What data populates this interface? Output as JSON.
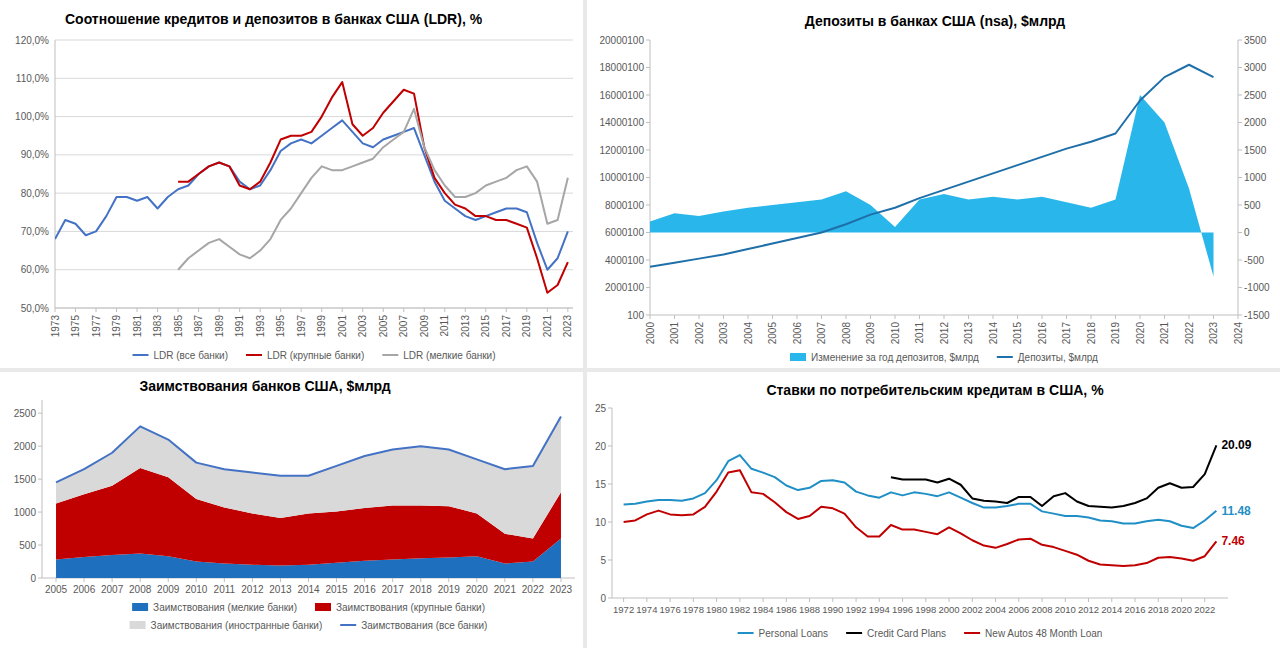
{
  "chart_data": [
    {
      "type": "line",
      "title": "Соотношение кредитов и депозитов в банках США (LDR), %",
      "x": [
        1973,
        1974,
        1975,
        1976,
        1977,
        1978,
        1979,
        1980,
        1981,
        1982,
        1983,
        1984,
        1985,
        1986,
        1987,
        1988,
        1989,
        1990,
        1991,
        1992,
        1993,
        1994,
        1995,
        1996,
        1997,
        1998,
        1999,
        2000,
        2001,
        2002,
        2003,
        2004,
        2005,
        2006,
        2007,
        2008,
        2009,
        2010,
        2011,
        2012,
        2013,
        2014,
        2015,
        2016,
        2017,
        2018,
        2019,
        2020,
        2021,
        2022,
        2023
      ],
      "series": [
        {
          "name": "LDR (все банки)",
          "color": "#4472c4",
          "values": [
            68,
            73,
            72,
            69,
            70,
            74,
            79,
            79,
            78,
            79,
            76,
            79,
            81,
            82,
            85,
            87,
            88,
            87,
            83,
            81,
            82,
            86,
            91,
            93,
            94,
            93,
            95,
            97,
            99,
            96,
            93,
            92,
            94,
            95,
            96,
            97,
            90,
            83,
            78,
            76,
            74,
            73,
            74,
            75,
            76,
            76,
            75,
            67,
            60,
            63,
            70
          ]
        },
        {
          "name": "LDR (крупные банки)",
          "color": "#c00000",
          "values": [
            null,
            null,
            null,
            null,
            null,
            null,
            null,
            null,
            null,
            null,
            null,
            null,
            83,
            83,
            85,
            87,
            88,
            87,
            82,
            81,
            83,
            88,
            94,
            95,
            95,
            96,
            100,
            105,
            109,
            98,
            95,
            97,
            101,
            104,
            107,
            106,
            92,
            84,
            80,
            77,
            76,
            74,
            74,
            73,
            73,
            72,
            71,
            63,
            54,
            56,
            62
          ]
        },
        {
          "name": "LDR (мелкие банки)",
          "color": "#a6a6a6",
          "values": [
            null,
            null,
            null,
            null,
            null,
            null,
            null,
            null,
            null,
            null,
            null,
            null,
            60,
            63,
            65,
            67,
            68,
            66,
            64,
            63,
            65,
            68,
            73,
            76,
            80,
            84,
            87,
            86,
            86,
            87,
            88,
            89,
            92,
            94,
            96,
            102,
            92,
            86,
            82,
            79,
            79,
            80,
            82,
            83,
            84,
            86,
            87,
            83,
            72,
            73,
            84
          ]
        }
      ],
      "xlim": [
        1973,
        2023.5
      ],
      "xticks": [
        1973,
        1975,
        1977,
        1979,
        1981,
        1983,
        1985,
        1987,
        1989,
        1991,
        1993,
        1995,
        1997,
        1999,
        2001,
        2003,
        2005,
        2007,
        2009,
        2011,
        2013,
        2015,
        2017,
        2019,
        2021,
        2023
      ],
      "ylim": [
        50,
        120
      ],
      "yticks": [
        {
          "value": 50,
          "label": "50,0%"
        },
        {
          "value": 60,
          "label": "60,0%"
        },
        {
          "value": 70,
          "label": "70,0%"
        },
        {
          "value": 80,
          "label": "80,0%"
        },
        {
          "value": 90,
          "label": "90,0%"
        },
        {
          "value": 100,
          "label": "100,0%"
        },
        {
          "value": 110,
          "label": "110,0%"
        },
        {
          "value": 120,
          "label": "120,0%"
        }
      ],
      "grid": true,
      "legend": "bottom"
    },
    {
      "type": "line",
      "title": "Депозиты в банках США (nsa), $млрд",
      "x": [
        2000,
        2001,
        2002,
        2003,
        2004,
        2005,
        2006,
        2007,
        2008,
        2009,
        2010,
        2011,
        2012,
        2013,
        2014,
        2015,
        2016,
        2017,
        2018,
        2019,
        2020,
        2021,
        2022,
        2023
      ],
      "series": [
        {
          "name": "Изменение за год депозитов, $млрд",
          "type": "area",
          "axis": "y2",
          "color": "#29b6ea",
          "values": [
            200,
            350,
            300,
            380,
            450,
            500,
            550,
            600,
            750,
            500,
            100,
            600,
            700,
            600,
            650,
            600,
            650,
            550,
            450,
            600,
            2500,
            2000,
            800,
            -800
          ]
        },
        {
          "name": "Депозиты, $млрд",
          "type": "line",
          "color": "#1f6fa8",
          "values": [
            3500000,
            3800000,
            4100000,
            4400000,
            4800000,
            5200000,
            5600000,
            6000000,
            6600000,
            7300000,
            7800000,
            8500000,
            9100000,
            9700000,
            10300000,
            10900000,
            11500000,
            12100000,
            12600000,
            13200000,
            15600000,
            17300000,
            18200000,
            17300000
          ]
        }
      ],
      "xlim": [
        2000,
        2024
      ],
      "xticks": [
        2000,
        2001,
        2002,
        2003,
        2004,
        2005,
        2006,
        2007,
        2008,
        2009,
        2010,
        2011,
        2012,
        2013,
        2014,
        2015,
        2016,
        2017,
        2018,
        2019,
        2020,
        2021,
        2022,
        2023,
        2024
      ],
      "ylim": [
        100,
        20000100
      ],
      "yticks": [
        100,
        2000100,
        4000100,
        6000100,
        8000100,
        10000100,
        12000100,
        14000100,
        16000100,
        18000100,
        20000100
      ],
      "y2lim": [
        -1500,
        3500
      ],
      "y2ticks": [
        -1500,
        -1000,
        -500,
        0,
        500,
        1000,
        1500,
        2000,
        2500,
        3000,
        3500
      ],
      "grid": false,
      "legend": "bottom"
    },
    {
      "type": "area",
      "title": "Заимствования банков США, $млрд",
      "x": [
        2005,
        2006,
        2007,
        2008,
        2009,
        2010,
        2011,
        2012,
        2013,
        2014,
        2015,
        2016,
        2017,
        2018,
        2019,
        2020,
        2021,
        2022,
        2023
      ],
      "series": [
        {
          "name": "Заимствования (мелкие банки)",
          "color": "#1f6fbf",
          "values": [
            280,
            320,
            350,
            370,
            330,
            250,
            220,
            200,
            190,
            200,
            230,
            260,
            280,
            300,
            310,
            330,
            220,
            250,
            600
          ]
        },
        {
          "name": "Заимствования (крупные банки)",
          "color": "#c00000",
          "values": [
            850,
            950,
            1050,
            1300,
            1200,
            950,
            850,
            780,
            720,
            780,
            780,
            800,
            820,
            800,
            780,
            650,
            450,
            350,
            700
          ]
        },
        {
          "name": "Заимствования (иностранные банки)",
          "color": "#d9d9d9",
          "values": [
            320,
            380,
            500,
            630,
            570,
            550,
            580,
            620,
            640,
            570,
            690,
            790,
            850,
            900,
            860,
            820,
            980,
            1100,
            1150
          ]
        },
        {
          "name": "Заимствования (все банки)",
          "type": "line",
          "color": "#4472c4",
          "values": [
            1450,
            1650,
            1900,
            2300,
            2100,
            1750,
            1650,
            1600,
            1550,
            1550,
            1700,
            1850,
            1950,
            2000,
            1950,
            1800,
            1650,
            1700,
            2450
          ]
        }
      ],
      "stacked": true,
      "xlim": [
        2004.5,
        2023.5
      ],
      "xticks": [
        2005,
        2006,
        2007,
        2008,
        2009,
        2010,
        2011,
        2012,
        2013,
        2014,
        2015,
        2016,
        2017,
        2018,
        2019,
        2020,
        2021,
        2022,
        2023
      ],
      "ylim": [
        0,
        2700
      ],
      "yticks": [
        0,
        500,
        1000,
        1500,
        2000,
        2500
      ],
      "grid": false,
      "legend": "bottom"
    },
    {
      "type": "line",
      "title": "Ставки по потребительским кредитам в США, %",
      "x": [
        1972,
        1973,
        1974,
        1975,
        1976,
        1977,
        1978,
        1979,
        1980,
        1981,
        1982,
        1983,
        1984,
        1985,
        1986,
        1987,
        1988,
        1989,
        1990,
        1991,
        1992,
        1993,
        1994,
        1995,
        1996,
        1997,
        1998,
        1999,
        2000,
        2001,
        2002,
        2003,
        2004,
        2005,
        2006,
        2007,
        2008,
        2009,
        2010,
        2011,
        2012,
        2013,
        2014,
        2015,
        2016,
        2017,
        2018,
        2019,
        2020,
        2021,
        2022,
        2023
      ],
      "series": [
        {
          "name": "Personal Loans",
          "color": "#1f8fc6",
          "values": [
            12.3,
            12.4,
            12.7,
            12.9,
            12.9,
            12.8,
            13.1,
            13.8,
            15.5,
            18.0,
            18.8,
            17.0,
            16.5,
            15.9,
            14.8,
            14.2,
            14.5,
            15.4,
            15.5,
            15.2,
            14.0,
            13.5,
            13.2,
            13.9,
            13.5,
            13.9,
            13.7,
            13.4,
            13.9,
            13.2,
            12.5,
            11.9,
            11.9,
            12.1,
            12.4,
            12.4,
            11.4,
            11.1,
            10.8,
            10.8,
            10.6,
            10.2,
            10.1,
            9.8,
            9.8,
            10.1,
            10.3,
            10.1,
            9.5,
            9.2,
            10.2,
            11.48
          ]
        },
        {
          "name": "Credit Card Plans",
          "color": "#000000",
          "values": [
            null,
            null,
            null,
            null,
            null,
            null,
            null,
            null,
            null,
            null,
            null,
            null,
            null,
            null,
            null,
            null,
            null,
            null,
            null,
            null,
            null,
            null,
            null,
            15.9,
            15.6,
            15.6,
            15.6,
            15.2,
            15.7,
            14.9,
            13.1,
            12.8,
            12.7,
            12.5,
            13.3,
            13.3,
            12.1,
            13.4,
            13.8,
            12.7,
            12.1,
            12.0,
            11.9,
            12.1,
            12.5,
            13.1,
            14.5,
            15.1,
            14.5,
            14.6,
            16.3,
            20.09
          ]
        },
        {
          "name": "New Autos 48 Month Loan",
          "color": "#c00000",
          "values": [
            10.0,
            10.2,
            11.0,
            11.5,
            11.0,
            10.9,
            11.0,
            12.0,
            14.0,
            16.5,
            16.8,
            13.9,
            13.7,
            12.6,
            11.3,
            10.4,
            10.8,
            12.0,
            11.8,
            11.1,
            9.3,
            8.1,
            8.1,
            9.6,
            9.0,
            9.0,
            8.7,
            8.4,
            9.3,
            8.5,
            7.6,
            6.9,
            6.6,
            7.1,
            7.7,
            7.8,
            7.0,
            6.7,
            6.2,
            5.7,
            4.9,
            4.4,
            4.3,
            4.2,
            4.3,
            4.6,
            5.3,
            5.4,
            5.2,
            4.9,
            5.5,
            7.46
          ]
        }
      ],
      "annotations": [
        {
          "text": "20.09",
          "x": 2023,
          "y": 20.09,
          "color": "#000000"
        },
        {
          "text": "11.48",
          "x": 2023,
          "y": 11.48,
          "color": "#1f8fc6"
        },
        {
          "text": "7.46",
          "x": 2023,
          "y": 7.46,
          "color": "#c00000"
        }
      ],
      "xlim": [
        1971,
        2024
      ],
      "xticks": [
        1972,
        1974,
        1976,
        1978,
        1980,
        1982,
        1984,
        1986,
        1988,
        1990,
        1992,
        1994,
        1996,
        1998,
        2000,
        2002,
        2004,
        2006,
        2008,
        2010,
        2012,
        2014,
        2016,
        2018,
        2020,
        2022
      ],
      "ylim": [
        0,
        25
      ],
      "yticks": [
        0,
        5,
        10,
        15,
        20,
        25
      ],
      "grid": false,
      "legend": "bottom"
    }
  ]
}
